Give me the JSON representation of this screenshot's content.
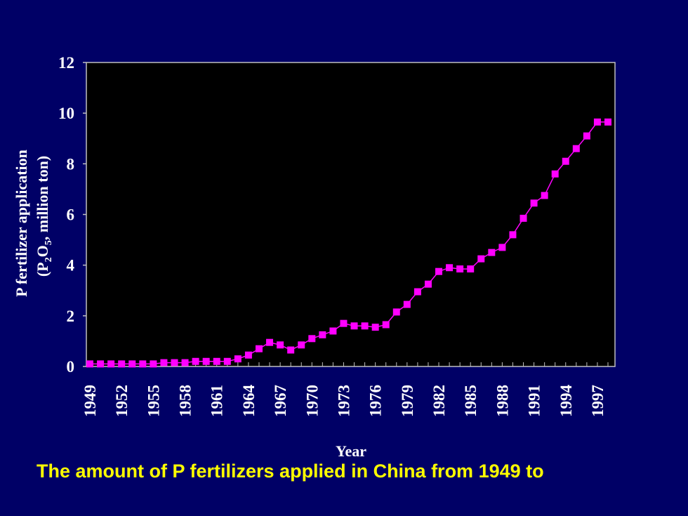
{
  "caption": "The amount of P fertilizers applied in China from 1949 to",
  "chart_data": {
    "type": "line",
    "title": "",
    "xlabel": "Year",
    "ylabel_line1": "P fertilizer application",
    "ylabel_line2_pre": "(P",
    "ylabel_sub1": "2",
    "ylabel_mid": "O",
    "ylabel_sub2": "5",
    "ylabel_post": ", million ton)",
    "ylim": [
      0,
      12
    ],
    "yticks": [
      0,
      2,
      4,
      6,
      8,
      10,
      12
    ],
    "xlim": [
      1949,
      1998
    ],
    "xtick_labels": [
      1949,
      1952,
      1955,
      1958,
      1961,
      1964,
      1967,
      1970,
      1973,
      1976,
      1979,
      1982,
      1985,
      1988,
      1991,
      1994,
      1997
    ],
    "grid": false,
    "legend": "none",
    "plot_background": "#000000",
    "page_background": "#000066",
    "series_color": "#ff00ff",
    "marker": "square",
    "x": [
      1949,
      1950,
      1951,
      1952,
      1953,
      1954,
      1955,
      1956,
      1957,
      1958,
      1959,
      1960,
      1961,
      1962,
      1963,
      1964,
      1965,
      1966,
      1967,
      1968,
      1969,
      1970,
      1971,
      1972,
      1973,
      1974,
      1975,
      1976,
      1977,
      1978,
      1979,
      1980,
      1981,
      1982,
      1983,
      1984,
      1985,
      1986,
      1987,
      1988,
      1989,
      1990,
      1991,
      1992,
      1993,
      1994,
      1995,
      1996,
      1997,
      1998
    ],
    "values": [
      0.1,
      0.1,
      0.1,
      0.1,
      0.1,
      0.1,
      0.1,
      0.15,
      0.15,
      0.15,
      0.2,
      0.2,
      0.2,
      0.2,
      0.3,
      0.45,
      0.7,
      0.95,
      0.85,
      0.65,
      0.85,
      1.1,
      1.25,
      1.4,
      1.7,
      1.6,
      1.6,
      1.55,
      1.65,
      2.15,
      2.45,
      2.95,
      3.25,
      3.75,
      3.9,
      3.85,
      3.85,
      4.25,
      4.5,
      4.7,
      5.2,
      5.85,
      6.45,
      6.75,
      7.6,
      8.1,
      8.6,
      9.1,
      9.65,
      9.65
    ]
  }
}
